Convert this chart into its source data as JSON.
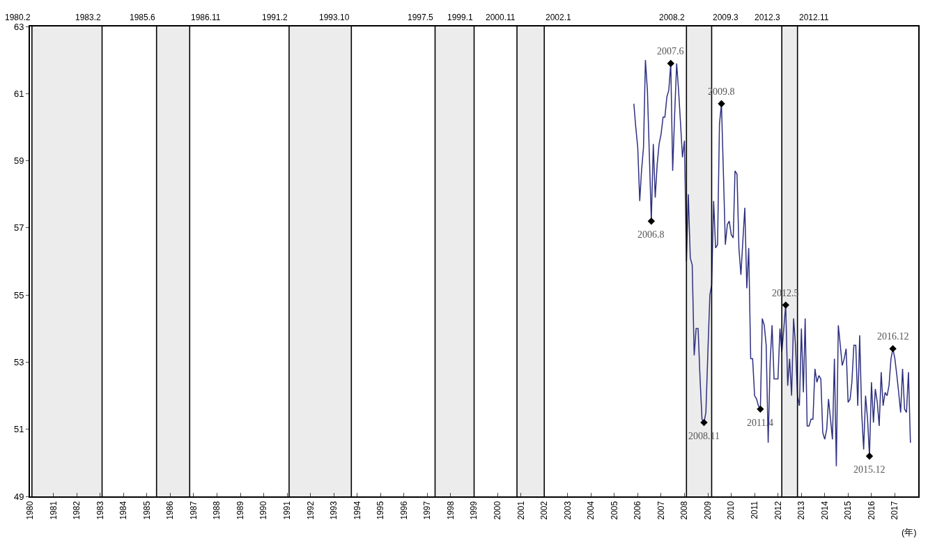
{
  "chart_data": {
    "type": "line",
    "xlabel": "(年)",
    "grid": false,
    "xlim": [
      "1980-01-01",
      "2018-01-01"
    ],
    "xticks": [
      {
        "value": "1980",
        "label": "1980"
      },
      {
        "value": "1981",
        "label": "1981"
      },
      {
        "value": "1982",
        "label": "1982"
      },
      {
        "value": "1983",
        "label": "1983"
      },
      {
        "value": "1984",
        "label": "1984"
      },
      {
        "value": "1985",
        "label": "1985"
      },
      {
        "value": "1986",
        "label": "1986"
      },
      {
        "value": "1987",
        "label": "1987"
      },
      {
        "value": "1988",
        "label": "1988"
      },
      {
        "value": "1989",
        "label": "1989"
      },
      {
        "value": "1990",
        "label": "1990"
      },
      {
        "value": "1991",
        "label": "1991"
      },
      {
        "value": "1992",
        "label": "1992"
      },
      {
        "value": "1993",
        "label": "1993"
      },
      {
        "value": "1994",
        "label": "1994"
      },
      {
        "value": "1995",
        "label": "1995"
      },
      {
        "value": "1996",
        "label": "1996"
      },
      {
        "value": "1997",
        "label": "1997"
      },
      {
        "value": "1998",
        "label": "1998"
      },
      {
        "value": "1999",
        "label": "1999"
      },
      {
        "value": "2000",
        "label": "2000"
      },
      {
        "value": "2001",
        "label": "2001"
      },
      {
        "value": "2002",
        "label": "2002"
      },
      {
        "value": "2003",
        "label": "2003"
      },
      {
        "value": "2004",
        "label": "2004"
      },
      {
        "value": "2005",
        "label": "2005"
      },
      {
        "value": "2006",
        "label": "2006"
      },
      {
        "value": "2007",
        "label": "2007"
      },
      {
        "value": "2008",
        "label": "2008"
      },
      {
        "value": "2009",
        "label": "2009"
      },
      {
        "value": "2010",
        "label": "2010"
      },
      {
        "value": "2011",
        "label": "2011"
      },
      {
        "value": "2012",
        "label": "2012"
      },
      {
        "value": "2013",
        "label": "2013"
      },
      {
        "value": "2014",
        "label": "2014"
      },
      {
        "value": "2015",
        "label": "2015"
      },
      {
        "value": "2016",
        "label": "2016"
      },
      {
        "value": "2017",
        "label": "2017"
      }
    ],
    "ylim": [
      49,
      63
    ],
    "yticks": [
      49,
      51,
      53,
      55,
      57,
      59,
      61,
      63
    ],
    "x": [
      "2005-11",
      "2005-12",
      "2006-01",
      "2006-02",
      "2006-03",
      "2006-04",
      "2006-05",
      "2006-06",
      "2006-07",
      "2006-08",
      "2006-09",
      "2006-10",
      "2006-11",
      "2006-12",
      "2007-01",
      "2007-02",
      "2007-03",
      "2007-04",
      "2007-05",
      "2007-06",
      "2007-07",
      "2007-08",
      "2007-09",
      "2007-10",
      "2007-11",
      "2007-12",
      "2008-01",
      "2008-02",
      "2008-03",
      "2008-04",
      "2008-05",
      "2008-06",
      "2008-07",
      "2008-08",
      "2008-09",
      "2008-10",
      "2008-11",
      "2008-12",
      "2009-01",
      "2009-02",
      "2009-03",
      "2009-04",
      "2009-05",
      "2009-06",
      "2009-07",
      "2009-08",
      "2009-09",
      "2009-10",
      "2009-11",
      "2009-12",
      "2010-01",
      "2010-02",
      "2010-03",
      "2010-04",
      "2010-05",
      "2010-06",
      "2010-07",
      "2010-08",
      "2010-09",
      "2010-10",
      "2010-11",
      "2010-12",
      "2011-01",
      "2011-02",
      "2011-03",
      "2011-04",
      "2011-05",
      "2011-06",
      "2011-07",
      "2011-08",
      "2011-09",
      "2011-10",
      "2011-11",
      "2011-12",
      "2012-01",
      "2012-02",
      "2012-03",
      "2012-04",
      "2012-05",
      "2012-06",
      "2012-07",
      "2012-08",
      "2012-09",
      "2012-10",
      "2012-11",
      "2012-12",
      "2013-01",
      "2013-02",
      "2013-03",
      "2013-04",
      "2013-05",
      "2013-06",
      "2013-07",
      "2013-08",
      "2013-09",
      "2013-10",
      "2013-11",
      "2013-12",
      "2014-01",
      "2014-02",
      "2014-03",
      "2014-04",
      "2014-05",
      "2014-06",
      "2014-07",
      "2014-08",
      "2014-09",
      "2014-10",
      "2014-11",
      "2014-12",
      "2015-01",
      "2015-02",
      "2015-03",
      "2015-04",
      "2015-05",
      "2015-06",
      "2015-07",
      "2015-08",
      "2015-09",
      "2015-10",
      "2015-11",
      "2015-12",
      "2016-01",
      "2016-02",
      "2016-03",
      "2016-04",
      "2016-05",
      "2016-06",
      "2016-07",
      "2016-08",
      "2016-09",
      "2016-10",
      "2016-11",
      "2016-12",
      "2017-01",
      "2017-02",
      "2017-03",
      "2017-04",
      "2017-05",
      "2017-06",
      "2017-07",
      "2017-08",
      "2017-09"
    ],
    "series": [
      {
        "color": "#2e3080",
        "marker": "none",
        "line_style": "solid",
        "values": [
          60.7,
          60.0,
          59.4,
          57.8,
          58.7,
          59.4,
          62.0,
          61.1,
          59.2,
          57.2,
          59.5,
          57.9,
          58.9,
          59.5,
          59.8,
          60.3,
          60.3,
          60.9,
          61.1,
          61.9,
          58.7,
          60.4,
          61.9,
          61.1,
          60.1,
          59.1,
          59.6,
          56.0,
          58.0,
          56.1,
          55.9,
          53.2,
          54.0,
          54.0,
          52.5,
          51.3,
          51.2,
          51.5,
          53.3,
          55.0,
          55.3,
          57.8,
          56.4,
          56.5,
          60.1,
          60.7,
          58.6,
          56.5,
          57.1,
          57.2,
          56.8,
          56.7,
          58.7,
          58.6,
          56.4,
          55.6,
          56.6,
          57.6,
          55.2,
          56.4,
          53.1,
          53.1,
          52.0,
          51.9,
          51.7,
          51.6,
          54.3,
          54.1,
          53.5,
          50.6,
          53.0,
          54.1,
          52.5,
          52.5,
          52.5,
          54.0,
          53.3,
          54.0,
          54.7,
          52.3,
          53.1,
          52.0,
          54.3,
          53.5,
          52.0,
          51.7,
          54.0,
          52.1,
          54.3,
          51.1,
          51.1,
          51.3,
          51.3,
          52.8,
          52.4,
          52.6,
          52.5,
          50.9,
          50.7,
          51.0,
          51.9,
          51.3,
          50.7,
          53.1,
          49.9,
          54.1,
          53.5,
          52.9,
          53.1,
          53.4,
          51.8,
          51.9,
          52.4,
          53.5,
          53.5,
          51.7,
          53.8,
          51.5,
          50.4,
          52.0,
          51.3,
          50.2,
          52.4,
          51.2,
          52.2,
          51.8,
          51.1,
          52.7,
          51.7,
          52.1,
          52.0,
          52.3,
          53.1,
          53.4,
          53.1,
          52.6,
          52.1,
          51.5,
          52.8,
          51.6,
          51.5,
          52.7,
          50.6
        ]
      },
      {
        "type": "scatter",
        "color": "#000000",
        "marker": "diamond",
        "x": [
          "2006-08",
          "2007-06",
          "2008-11",
          "2009-08",
          "2011-04",
          "2012-05",
          "2015-12",
          "2016-12"
        ],
        "values": [
          57.2,
          61.9,
          51.2,
          60.7,
          51.6,
          54.7,
          50.2,
          53.4
        ]
      }
    ],
    "annotations": [
      {
        "text": "2006.8",
        "x": "2006-08",
        "y": 57.2
      },
      {
        "text": "2007.6",
        "x": "2007-06",
        "y": 61.9
      },
      {
        "text": "2008.11",
        "x": "2008-11",
        "y": 51.2
      },
      {
        "text": "2009.8",
        "x": "2009-08",
        "y": 60.7
      },
      {
        "text": "2011.4",
        "x": "2011-04",
        "y": 51.6
      },
      {
        "text": "2012.5",
        "x": "2012-05",
        "y": 54.7
      },
      {
        "text": "2015.12",
        "x": "2015-12",
        "y": 50.2
      },
      {
        "text": "2016.12",
        "x": "2016-12",
        "y": 53.4
      }
    ],
    "bands": [
      {
        "axis": "x",
        "from": "1980-02",
        "to": "1983-02",
        "color": "#ececec"
      },
      {
        "axis": "x",
        "from": "1985-06",
        "to": "1986-11",
        "color": "#ececec"
      },
      {
        "axis": "x",
        "from": "1991-02",
        "to": "1993-10",
        "color": "#ececec"
      },
      {
        "axis": "x",
        "from": "1997-05",
        "to": "1999-01",
        "color": "#ececec"
      },
      {
        "axis": "x",
        "from": "2000-11",
        "to": "2002-01",
        "color": "#ececec"
      },
      {
        "axis": "x",
        "from": "2008-02",
        "to": "2009-03",
        "color": "#ececec"
      },
      {
        "axis": "x",
        "from": "2012-03",
        "to": "2012-11",
        "color": "#ececec"
      }
    ],
    "ref_lines": [
      {
        "axis": "x",
        "value": "1980-02",
        "label": "1980.2",
        "color": "#000000"
      },
      {
        "axis": "x",
        "value": "1983-02",
        "label": "1983.2",
        "color": "#000000"
      },
      {
        "axis": "x",
        "value": "1985-06",
        "label": "1985.6",
        "color": "#000000"
      },
      {
        "axis": "x",
        "value": "1986-11",
        "label": "1986.11",
        "color": "#000000"
      },
      {
        "axis": "x",
        "value": "1991-02",
        "label": "1991.2",
        "color": "#000000"
      },
      {
        "axis": "x",
        "value": "1993-10",
        "label": "1993.10",
        "color": "#000000"
      },
      {
        "axis": "x",
        "value": "1997-05",
        "label": "1997.5",
        "color": "#000000"
      },
      {
        "axis": "x",
        "value": "1999-01",
        "label": "1999.1",
        "color": "#000000"
      },
      {
        "axis": "x",
        "value": "2000-11",
        "label": "2000.11",
        "color": "#000000"
      },
      {
        "axis": "x",
        "value": "2002-01",
        "label": "2002.1",
        "color": "#000000"
      },
      {
        "axis": "x",
        "value": "2008-02",
        "label": "2008.2",
        "color": "#000000"
      },
      {
        "axis": "x",
        "value": "2009-03",
        "label": "2009.3",
        "color": "#000000"
      },
      {
        "axis": "x",
        "value": "2012-03",
        "label": "2012.3",
        "color": "#000000"
      },
      {
        "axis": "x",
        "value": "2012-11",
        "label": "2012.11",
        "color": "#000000"
      }
    ]
  }
}
